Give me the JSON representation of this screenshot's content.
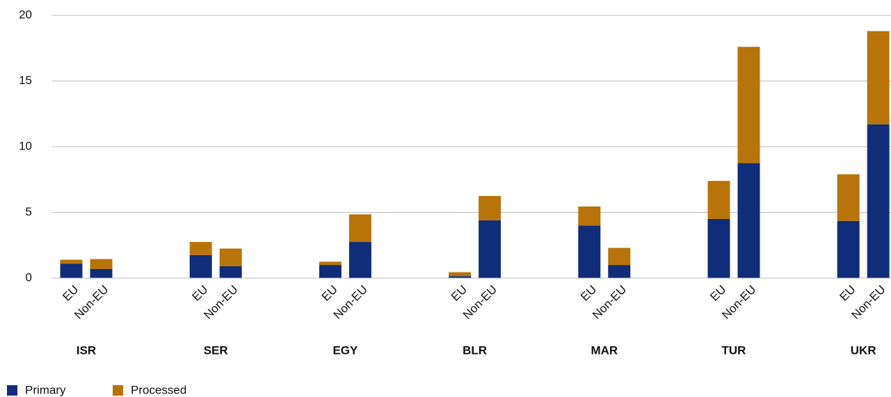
{
  "chart_data": {
    "type": "grouped_stacked_bar",
    "groups": [
      "ISR",
      "SER",
      "EGY",
      "BLR",
      "MAR",
      "TUR",
      "UKR"
    ],
    "categories": [
      "EU",
      "Non-EU",
      "EU",
      "Non-EU",
      "EU",
      "Non-EU",
      "EU",
      "Non-EU",
      "EU",
      "Non-EU",
      "EU",
      "Non-EU",
      "EU",
      "Non-EU"
    ],
    "series": [
      {
        "name": "Primary",
        "color": "#0f2d78",
        "values": [
          1.1,
          0.7,
          1.75,
          0.9,
          1.0,
          2.75,
          0.15,
          4.4,
          4.0,
          1.0,
          4.5,
          8.75,
          4.35,
          11.7
        ]
      },
      {
        "name": "Processed",
        "color": "#b8730a",
        "values": [
          0.3,
          0.75,
          1.0,
          1.35,
          0.25,
          2.1,
          0.3,
          1.85,
          1.45,
          1.3,
          2.9,
          8.85,
          3.55,
          7.1
        ]
      }
    ],
    "ylim": [
      0,
      20
    ],
    "yticks": [
      0,
      5,
      10,
      15,
      20
    ],
    "grid": true,
    "legend": "bottom-left"
  }
}
